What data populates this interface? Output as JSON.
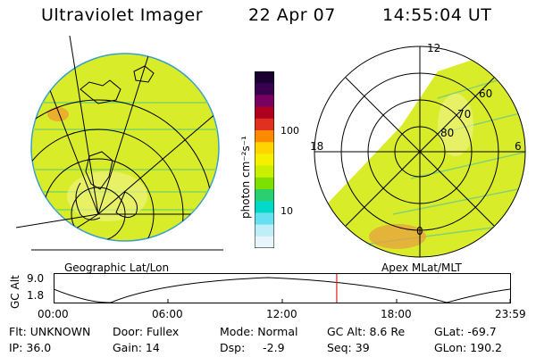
{
  "header": {
    "title": "Ultraviolet Imager",
    "date": "22 Apr 07",
    "time": "14:55:04 UT"
  },
  "colorbar": {
    "unit_label": "photon cm⁻²s⁻¹",
    "tick_high": "100",
    "tick_low": "10",
    "colors": [
      "#1a0030",
      "#3a0050",
      "#7a0060",
      "#b00020",
      "#e03020",
      "#ff8a00",
      "#ffd400",
      "#f5f000",
      "#c8f000",
      "#7ee000",
      "#2ad070",
      "#00d8c8",
      "#66e0f0",
      "#c0eef8",
      "#e8f6fb"
    ]
  },
  "left_panel": {
    "caption": "Geographic Lat/Lon",
    "fill_color": "#d8ec2a"
  },
  "right_panel": {
    "caption": "Apex  MLat/MLT",
    "label_12": "12",
    "label_18": "18",
    "label_6": "6",
    "label_0": "0",
    "label_60": "60",
    "label_70": "70",
    "label_80": "80",
    "fill_color": "#d8ec2a"
  },
  "alt_plot": {
    "axis_title": "GC Alt",
    "y_max": "9.0",
    "y_min": "1.8",
    "x_ticks": [
      "00:00",
      "06:00",
      "12:00",
      "18:00",
      "23:59"
    ],
    "marker_time_fraction": 0.6202,
    "marker_color": "#e02020"
  },
  "status": {
    "flt": "Flt: UNKNOWN",
    "ip": "IP: 36.0",
    "door": "Door: Fullex",
    "gain": "Gain: 14",
    "mode": "Mode: Normal",
    "dsp": "Dsp:     -2.9",
    "gc_alt": "GC Alt: 8.6 Re",
    "seq": "Seq: 39",
    "glat": "GLat: -69.7",
    "glon": "GLon: 190.2"
  }
}
